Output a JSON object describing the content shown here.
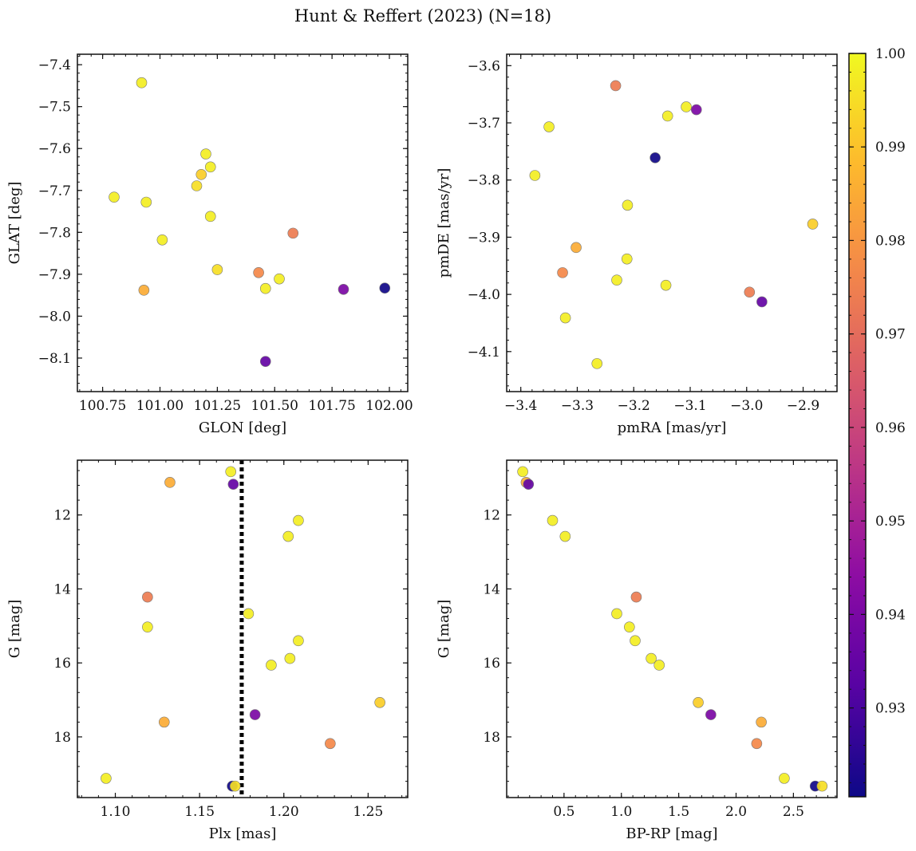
{
  "figure": {
    "suptitle": "Hunt & Reffert (2023) (N=18)"
  },
  "colorbar": {
    "colormap": "plasma",
    "range": [
      0.9205,
      1.0
    ],
    "tick_labels": [
      "1.00",
      "0.99",
      "0.98",
      "0.97",
      "0.96",
      "0.95",
      "0.94",
      "0.93"
    ],
    "tick_values": [
      1.0,
      0.99,
      0.98,
      0.97,
      0.96,
      0.95,
      0.94,
      0.93
    ]
  },
  "chart_data": [
    {
      "type": "scatter",
      "xlabel": "GLON [deg]",
      "ylabel": "GLAT [deg]",
      "xlim": [
        100.64,
        102.08
      ],
      "ylim": [
        -8.18,
        -7.375
      ],
      "x_ticks": [
        100.75,
        101.0,
        101.25,
        101.5,
        101.75,
        102.0
      ],
      "x_tick_labels": [
        "100.75",
        "101.00",
        "101.25",
        "101.50",
        "101.75",
        "102.00"
      ],
      "y_ticks": [
        -7.4,
        -7.5,
        -7.6,
        -7.7,
        -7.8,
        -7.9,
        -8.0,
        -8.1
      ],
      "y_tick_labels": [
        "−7.4",
        "−7.5",
        "−7.6",
        "−7.7",
        "−7.8",
        "−7.9",
        "−8.0",
        "−8.1"
      ],
      "points": [
        {
          "x": 100.92,
          "y": -7.443,
          "c": 0.998
        },
        {
          "x": 100.8,
          "y": -7.716,
          "c": 0.998
        },
        {
          "x": 100.94,
          "y": -7.728,
          "c": 0.998
        },
        {
          "x": 101.01,
          "y": -7.818,
          "c": 0.998
        },
        {
          "x": 101.2,
          "y": -7.613,
          "c": 0.998
        },
        {
          "x": 101.22,
          "y": -7.644,
          "c": 0.998
        },
        {
          "x": 101.18,
          "y": -7.662,
          "c": 0.992
        },
        {
          "x": 101.16,
          "y": -7.689,
          "c": 0.995
        },
        {
          "x": 101.22,
          "y": -7.762,
          "c": 0.998
        },
        {
          "x": 101.25,
          "y": -7.889,
          "c": 0.995
        },
        {
          "x": 101.58,
          "y": -7.802,
          "c": 0.974
        },
        {
          "x": 101.43,
          "y": -7.896,
          "c": 0.977
        },
        {
          "x": 101.52,
          "y": -7.911,
          "c": 0.998
        },
        {
          "x": 101.46,
          "y": -7.934,
          "c": 0.998
        },
        {
          "x": 100.93,
          "y": -7.938,
          "c": 0.985
        },
        {
          "x": 101.8,
          "y": -7.936,
          "c": 0.94
        },
        {
          "x": 101.98,
          "y": -7.933,
          "c": 0.921
        },
        {
          "x": 101.46,
          "y": -8.108,
          "c": 0.935
        }
      ]
    },
    {
      "type": "scatter",
      "xlabel": "pmRA [mas/yr]",
      "ylabel": "pmDE [mas/yr]",
      "xlim": [
        -3.425,
        -2.84
      ],
      "ylim": [
        -4.17,
        -3.58
      ],
      "x_ticks": [
        -3.4,
        -3.3,
        -3.2,
        -3.1,
        -3.0,
        -2.9
      ],
      "x_tick_labels": [
        "−3.4",
        "−3.3",
        "−3.2",
        "−3.1",
        "−3.0",
        "−2.9"
      ],
      "y_ticks": [
        -3.6,
        -3.7,
        -3.8,
        -3.9,
        -4.0,
        -4.1
      ],
      "y_tick_labels": [
        "−3.6",
        "−3.7",
        "−3.8",
        "−3.9",
        "−4.0",
        "−4.1"
      ],
      "points": [
        {
          "x": -3.232,
          "y": -3.635,
          "c": 0.974
        },
        {
          "x": -3.107,
          "y": -3.672,
          "c": 0.998
        },
        {
          "x": -3.089,
          "y": -3.677,
          "c": 0.94
        },
        {
          "x": -3.14,
          "y": -3.688,
          "c": 0.998
        },
        {
          "x": -3.35,
          "y": -3.707,
          "c": 0.998
        },
        {
          "x": -3.162,
          "y": -3.761,
          "c": 0.921
        },
        {
          "x": -3.375,
          "y": -3.792,
          "c": 0.998
        },
        {
          "x": -3.211,
          "y": -3.844,
          "c": 0.998
        },
        {
          "x": -2.883,
          "y": -3.877,
          "c": 0.992
        },
        {
          "x": -3.302,
          "y": -3.918,
          "c": 0.985
        },
        {
          "x": -3.212,
          "y": -3.938,
          "c": 0.998
        },
        {
          "x": -3.326,
          "y": -3.962,
          "c": 0.977
        },
        {
          "x": -3.23,
          "y": -3.975,
          "c": 0.998
        },
        {
          "x": -3.143,
          "y": -3.984,
          "c": 0.998
        },
        {
          "x": -2.995,
          "y": -3.996,
          "c": 0.974
        },
        {
          "x": -2.973,
          "y": -4.013,
          "c": 0.935
        },
        {
          "x": -3.321,
          "y": -4.041,
          "c": 0.998
        },
        {
          "x": -3.265,
          "y": -4.121,
          "c": 0.998
        }
      ]
    },
    {
      "type": "scatter",
      "xlabel": "Plx [mas]",
      "ylabel": "G [mag]",
      "xlim": [
        1.0775,
        1.2735
      ],
      "ylim": [
        19.64,
        10.52
      ],
      "x_ticks": [
        1.1,
        1.15,
        1.2,
        1.25
      ],
      "x_tick_labels": [
        "1.10",
        "1.15",
        "1.20",
        "1.25"
      ],
      "y_ticks": [
        12,
        14,
        16,
        18
      ],
      "y_tick_labels": [
        "12",
        "14",
        "16",
        "18"
      ],
      "reference_line": {
        "x": 1.175,
        "style": "dotted",
        "color": "#000000"
      },
      "points": [
        {
          "x": 1.1685,
          "y": 10.83,
          "c": 0.998
        },
        {
          "x": 1.1324,
          "y": 11.12,
          "c": 0.985
        },
        {
          "x": 1.17,
          "y": 11.17,
          "c": 0.935
        },
        {
          "x": 1.2086,
          "y": 12.15,
          "c": 0.998
        },
        {
          "x": 1.2026,
          "y": 12.58,
          "c": 0.998
        },
        {
          "x": 1.1191,
          "y": 14.22,
          "c": 0.974
        },
        {
          "x": 1.179,
          "y": 14.67,
          "c": 0.998
        },
        {
          "x": 1.1191,
          "y": 15.03,
          "c": 0.998
        },
        {
          "x": 1.2086,
          "y": 15.4,
          "c": 0.998
        },
        {
          "x": 1.2036,
          "y": 15.88,
          "c": 0.998
        },
        {
          "x": 1.1925,
          "y": 16.06,
          "c": 0.998
        },
        {
          "x": 1.257,
          "y": 17.07,
          "c": 0.992
        },
        {
          "x": 1.1829,
          "y": 17.4,
          "c": 0.94
        },
        {
          "x": 1.129,
          "y": 17.6,
          "c": 0.985
        },
        {
          "x": 1.2275,
          "y": 18.18,
          "c": 0.977
        },
        {
          "x": 1.0945,
          "y": 19.12,
          "c": 0.998
        },
        {
          "x": 1.1694,
          "y": 19.33,
          "c": 0.921
        },
        {
          "x": 1.1711,
          "y": 19.33,
          "c": 0.995
        }
      ]
    },
    {
      "type": "scatter",
      "xlabel": "BP-RP [mag]",
      "ylabel": "G [mag]",
      "xlim": [
        0.0,
        2.88
      ],
      "ylim": [
        19.64,
        10.52
      ],
      "x_ticks": [
        0.5,
        1.0,
        1.5,
        2.0,
        2.5
      ],
      "x_tick_labels": [
        "0.5",
        "1.0",
        "1.5",
        "2.0",
        "2.5"
      ],
      "y_ticks": [
        12,
        14,
        16,
        18
      ],
      "y_tick_labels": [
        "12",
        "14",
        "16",
        "18"
      ],
      "points": [
        {
          "x": 0.14,
          "y": 10.83,
          "c": 0.998
        },
        {
          "x": 0.17,
          "y": 11.12,
          "c": 0.985
        },
        {
          "x": 0.19,
          "y": 11.17,
          "c": 0.935
        },
        {
          "x": 0.4,
          "y": 12.15,
          "c": 0.998
        },
        {
          "x": 0.51,
          "y": 12.58,
          "c": 0.998
        },
        {
          "x": 1.13,
          "y": 14.22,
          "c": 0.974
        },
        {
          "x": 0.96,
          "y": 14.67,
          "c": 0.998
        },
        {
          "x": 1.07,
          "y": 15.03,
          "c": 0.998
        },
        {
          "x": 1.12,
          "y": 15.4,
          "c": 0.998
        },
        {
          "x": 1.26,
          "y": 15.88,
          "c": 0.998
        },
        {
          "x": 1.33,
          "y": 16.06,
          "c": 0.998
        },
        {
          "x": 1.67,
          "y": 17.07,
          "c": 0.992
        },
        {
          "x": 1.78,
          "y": 17.4,
          "c": 0.94
        },
        {
          "x": 2.22,
          "y": 17.6,
          "c": 0.985
        },
        {
          "x": 2.18,
          "y": 18.18,
          "c": 0.977
        },
        {
          "x": 2.42,
          "y": 19.12,
          "c": 0.998
        },
        {
          "x": 2.69,
          "y": 19.33,
          "c": 0.921
        },
        {
          "x": 2.75,
          "y": 19.33,
          "c": 0.995
        }
      ]
    }
  ]
}
